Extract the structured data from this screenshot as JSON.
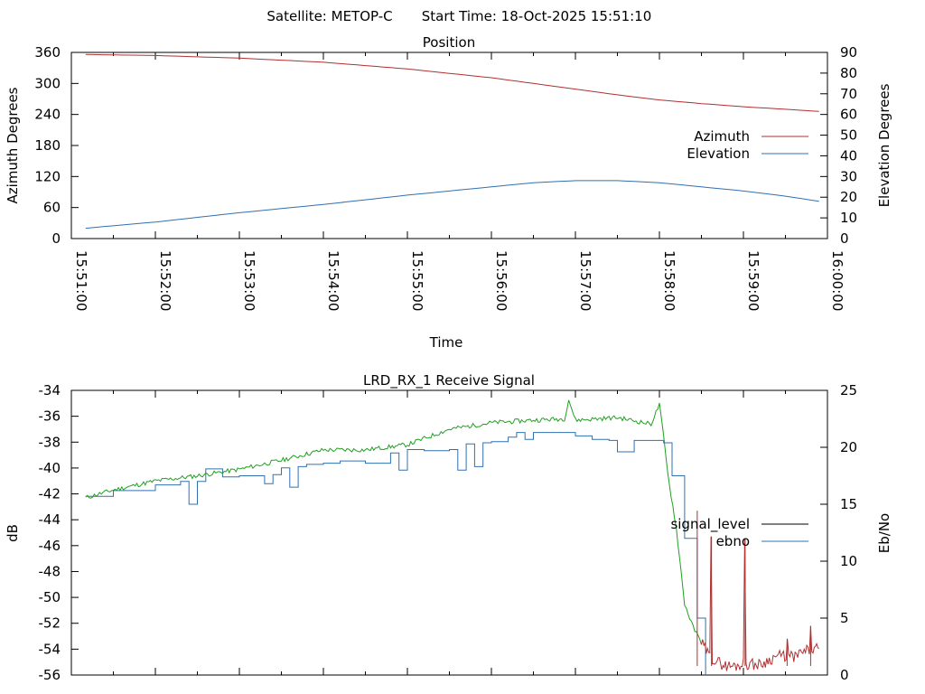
{
  "header": {
    "satellite": "Satellite: METOP-C",
    "start_time": "Start Time: 18-Oct-2025 15:51:10"
  },
  "chart_data": [
    {
      "type": "line",
      "title": "Position",
      "xlabel": "Time",
      "ylabel": "Azimuth Degrees",
      "y2label": "Elevation Degrees",
      "x_range_minutes": [
        0,
        9
      ],
      "x_ticks": [
        "15:51:00",
        "15:52:00",
        "15:53:00",
        "15:54:00",
        "15:55:00",
        "15:56:00",
        "15:57:00",
        "15:58:00",
        "15:59:00",
        "16:00:00"
      ],
      "ylim": [
        0,
        360
      ],
      "y_ticks": [
        0,
        60,
        120,
        180,
        240,
        300,
        360
      ],
      "y2lim": [
        0,
        90
      ],
      "y2_ticks": [
        0,
        10,
        20,
        30,
        40,
        50,
        60,
        70,
        80,
        90
      ],
      "legend_position": "right",
      "series": [
        {
          "name": "Azimuth",
          "axis": "y",
          "color": "#b03030",
          "x": [
            0.17,
            1.0,
            2.0,
            3.0,
            4.0,
            5.0,
            5.5,
            6.0,
            6.5,
            7.0,
            7.5,
            8.0,
            8.5,
            8.9
          ],
          "values": [
            356,
            354,
            349,
            341,
            328,
            311,
            300,
            289,
            278,
            268,
            261,
            255,
            250,
            246
          ]
        },
        {
          "name": "Elevation",
          "axis": "y2",
          "color": "#3070b0",
          "x": [
            0.17,
            1.0,
            2.0,
            3.0,
            4.0,
            5.0,
            5.5,
            6.0,
            6.5,
            7.0,
            7.5,
            8.0,
            8.5,
            8.9
          ],
          "values": [
            5,
            8,
            12.5,
            16.5,
            21,
            25,
            27,
            28,
            28,
            27,
            25,
            23,
            20.5,
            18
          ]
        }
      ]
    },
    {
      "type": "line",
      "title": "LRD_RX_1 Receive Signal",
      "ylabel": "dB",
      "y2label": "Eb/No",
      "x_range_minutes": [
        0,
        9
      ],
      "ylim": [
        -56,
        -34
      ],
      "y_ticks": [
        -34,
        -36,
        -38,
        -40,
        -42,
        -44,
        -46,
        -48,
        -50,
        -52,
        -54,
        -56
      ],
      "y2lim": [
        0,
        25
      ],
      "y2_ticks": [
        0,
        5,
        10,
        15,
        20,
        25
      ],
      "legend_position": "right",
      "series": [
        {
          "name": "signal_level",
          "axis": "y",
          "legend_color": "#000000",
          "color": "#20a020",
          "color_after_loss": "#b03030",
          "x": [
            0.17,
            0.5,
            1.0,
            1.5,
            2.0,
            2.5,
            3.0,
            3.5,
            4.0,
            4.5,
            5.0,
            5.5,
            5.87,
            5.92,
            6.0,
            6.5,
            6.9,
            7.0,
            7.05,
            7.1,
            7.2,
            7.3,
            7.4,
            7.5,
            7.6,
            7.7,
            7.8,
            7.9,
            8.0,
            8.2,
            8.4,
            8.6,
            8.8,
            8.9
          ],
          "values": [
            -42.3,
            -41.7,
            -41.0,
            -40.6,
            -40.1,
            -39.4,
            -38.6,
            -38.6,
            -38.2,
            -37.0,
            -36.5,
            -36.3,
            -36.2,
            -34.7,
            -36.3,
            -36.1,
            -36.6,
            -35.1,
            -37.6,
            -40.5,
            -44.6,
            -50.5,
            -52.3,
            -53.5,
            -54.6,
            -55.0,
            -55.3,
            -55.3,
            -55.1,
            -55.2,
            -54.5,
            -54.6,
            -54.0,
            -54.0
          ]
        },
        {
          "name": "ebno",
          "axis": "y2",
          "color": "#3070b0",
          "x": [
            0.17,
            0.5,
            1.0,
            1.3,
            1.4,
            1.5,
            1.6,
            1.8,
            2.0,
            2.3,
            2.4,
            2.5,
            2.6,
            2.7,
            2.8,
            3.0,
            3.2,
            3.5,
            3.8,
            3.9,
            4.0,
            4.2,
            4.5,
            4.6,
            4.7,
            4.8,
            4.9,
            5.0,
            5.2,
            5.3,
            5.4,
            5.5,
            6.0,
            6.2,
            6.4,
            6.5,
            6.7,
            6.9,
            7.05,
            7.15,
            7.3,
            7.45,
            7.55
          ],
          "values": [
            15.7,
            16.2,
            16.7,
            17.0,
            15.0,
            17.0,
            18.1,
            17.4,
            17.5,
            16.8,
            17.6,
            18.2,
            16.5,
            18.3,
            18.5,
            18.6,
            18.8,
            18.6,
            19.5,
            18.0,
            19.8,
            19.7,
            19.8,
            18.0,
            20.3,
            18.3,
            20.4,
            20.5,
            20.9,
            21.3,
            20.7,
            21.3,
            21.0,
            20.7,
            20.6,
            19.6,
            20.6,
            20.6,
            20.4,
            17.5,
            12.0,
            5.0,
            0.0
          ]
        }
      ],
      "spikes_after_loss": [
        {
          "x": 7.45,
          "value": -43.3
        },
        {
          "x": 7.62,
          "value": -45.3
        },
        {
          "x": 8.02,
          "value": -45.5
        },
        {
          "x": 8.52,
          "value": -53.2
        },
        {
          "x": 8.8,
          "value": -52.2
        }
      ]
    }
  ]
}
